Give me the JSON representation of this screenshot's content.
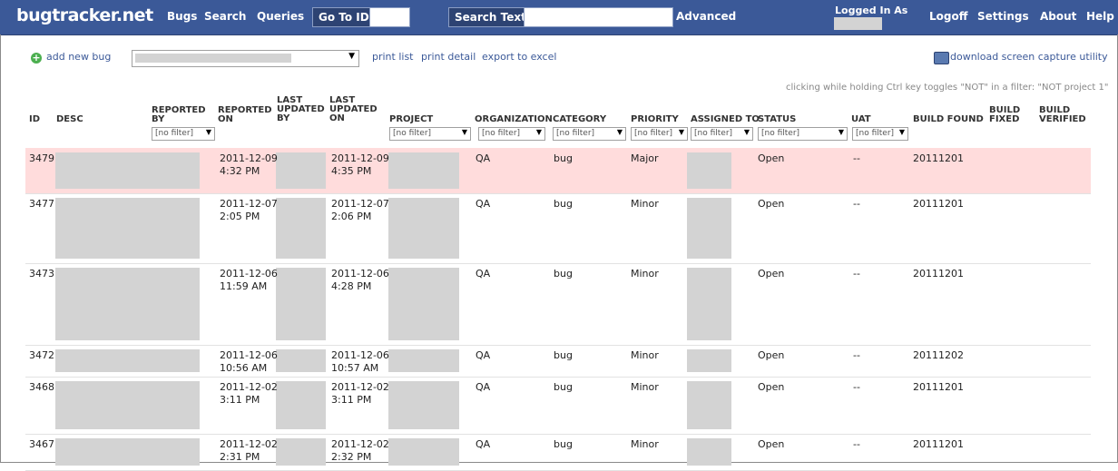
{
  "header": {
    "logo": "bugtracker.net",
    "nav_bugs": "Bugs",
    "nav_search": "Search",
    "nav_queries": "Queries",
    "goto_label": "Go To ID",
    "search_text_label": "Search Text",
    "advanced": "Advanced",
    "logged_in_as": "Logged In As",
    "logoff": "Logoff",
    "settings": "Settings",
    "about": "About",
    "help": "Help"
  },
  "toolbar": {
    "add_new_bug": "add new bug",
    "print_list": "print list",
    "print_detail": "print detail",
    "export_to_excel": "export to excel",
    "download_capture": "download screen capture utility",
    "hint": "clicking while holding Ctrl key toggles \"NOT\" in a filter: \"NOT project 1\""
  },
  "columns": {
    "id": "ID",
    "desc": "DESC",
    "reported_by": "REPORTED\nBY",
    "reported_on": "REPORTED\nON",
    "last_updated_by": "LAST\nUPDATED\nBY",
    "last_updated_on": "LAST\nUPDATED\nON",
    "project": "PROJECT",
    "organization": "ORGANIZATION",
    "category": "CATEGORY",
    "priority": "PRIORITY",
    "assigned_to": "ASSIGNED TO",
    "status": "STATUS",
    "uat": "UAT",
    "build_found": "BUILD FOUND",
    "build_fixed": "BUILD\nFIXED",
    "build_verified": "BUILD\nVERIFIED"
  },
  "filter_placeholder": "[no filter]",
  "rows": [
    {
      "id": "3479",
      "reported_on": "2011-12-09\n4:32 PM",
      "updated_on": "2011-12-09\n4:35 PM",
      "org": "QA",
      "category": "bug",
      "priority": "Major",
      "status": "Open",
      "uat": "--",
      "build_found": "20111201"
    },
    {
      "id": "3477",
      "reported_on": "2011-12-07\n2:05 PM",
      "updated_on": "2011-12-07\n2:06 PM",
      "org": "QA",
      "category": "bug",
      "priority": "Minor",
      "status": "Open",
      "uat": "--",
      "build_found": "20111201"
    },
    {
      "id": "3473",
      "reported_on": "2011-12-06\n11:59 AM",
      "updated_on": "2011-12-06\n4:28 PM",
      "org": "QA",
      "category": "bug",
      "priority": "Minor",
      "status": "Open",
      "uat": "--",
      "build_found": "20111201"
    },
    {
      "id": "3472",
      "reported_on": "2011-12-06\n10:56 AM",
      "updated_on": "2011-12-06\n10:57 AM",
      "org": "QA",
      "category": "bug",
      "priority": "Minor",
      "status": "Open",
      "uat": "--",
      "build_found": "20111202"
    },
    {
      "id": "3468",
      "reported_on": "2011-12-02\n3:11 PM",
      "updated_on": "2011-12-02\n3:11 PM",
      "org": "QA",
      "category": "bug",
      "priority": "Minor",
      "status": "Open",
      "uat": "--",
      "build_found": "20111201"
    },
    {
      "id": "3467",
      "reported_on": "2011-12-02\n2:31 PM",
      "updated_on": "2011-12-02\n2:32 PM",
      "org": "QA",
      "category": "bug",
      "priority": "Minor",
      "status": "Open",
      "uat": "--",
      "build_found": "20111201"
    }
  ]
}
